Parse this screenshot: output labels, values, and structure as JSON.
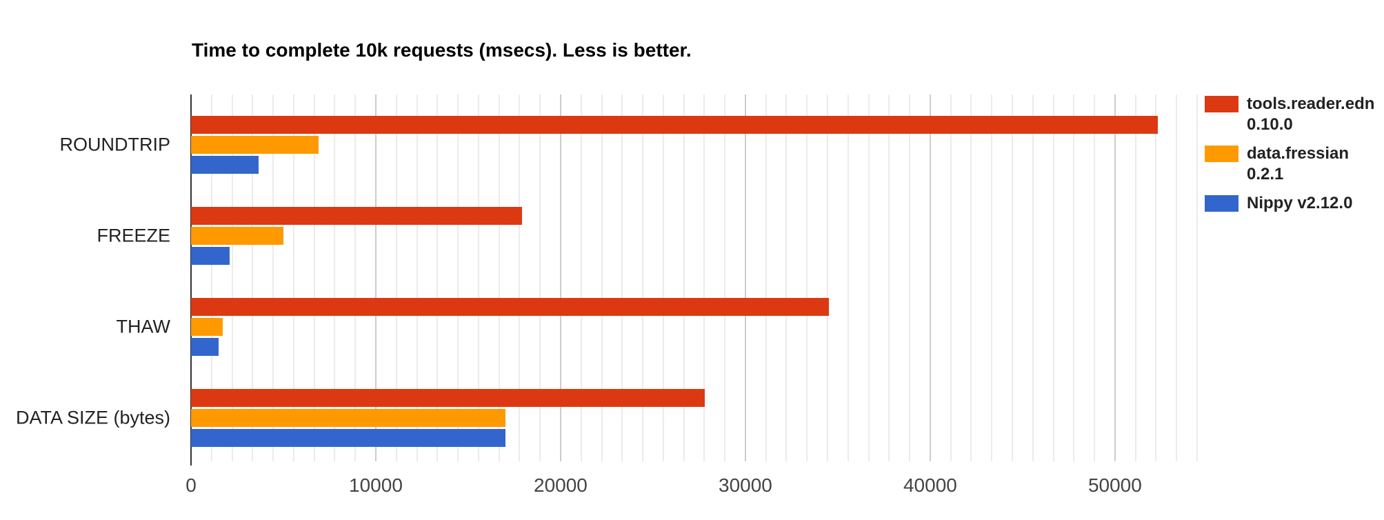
{
  "title": "Time to complete 10k requests (msecs). Less is better.",
  "chart_data": {
    "type": "bar",
    "orientation": "horizontal",
    "title": "Time to complete 10k requests (msecs). Less is better.",
    "categories": [
      "ROUNDTRIP",
      "FREEZE",
      "THAW",
      "DATA SIZE (bytes)"
    ],
    "series": [
      {
        "name": "tools.reader.edn 0.10.0",
        "color": "#DC3912",
        "values": [
          52300,
          17900,
          34500,
          27800
        ]
      },
      {
        "name": "data.fressian 0.2.1",
        "color": "#FF9900",
        "values": [
          6900,
          5000,
          1700,
          17000
        ]
      },
      {
        "name": "Nippy v2.12.0",
        "color": "#3366CC",
        "values": [
          3650,
          2100,
          1500,
          17000
        ]
      }
    ],
    "xlabel": "",
    "ylabel": "",
    "x_ticks": [
      0,
      10000,
      20000,
      30000,
      40000,
      50000
    ],
    "x_tick_step": 10000,
    "minor_gridlines_per_major": 9,
    "xlim": [
      0,
      54444
    ],
    "grid": true,
    "legend_position": "right"
  },
  "legend": {
    "items": [
      {
        "line1": "tools.reader.edn",
        "line2": "0.10.0",
        "color": "#DC3912"
      },
      {
        "line1": "data.fressian",
        "line2": "0.2.1",
        "color": "#FF9900"
      },
      {
        "line1": "Nippy v2.12.0",
        "line2": "",
        "color": "#3366CC"
      }
    ]
  },
  "colors": {
    "background": "#FFFFFF",
    "axis_line": "#333333",
    "gridline_minor": "#EBEBEB",
    "gridline_major": "#CCCCCC",
    "title_text": "#000000",
    "category_text": "#222222",
    "tick_text": "#444444",
    "legend_text": "#222222"
  }
}
